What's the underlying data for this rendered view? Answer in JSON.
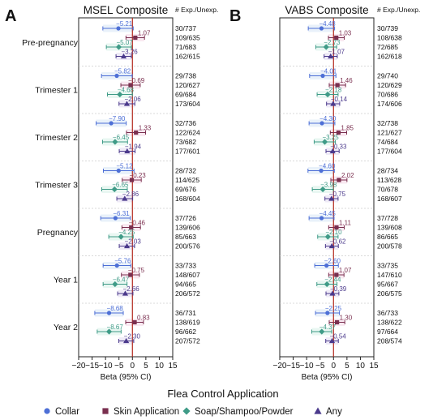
{
  "legend": {
    "title": "Flea Control Application",
    "position": "bottom",
    "items": [
      {
        "label": "Collar",
        "color": "#4d6fd6",
        "marker": "circle"
      },
      {
        "label": "Skin Application",
        "color": "#7a2f4f",
        "marker": "square"
      },
      {
        "label": "Soap/Shampoo/Powder",
        "color": "#3f9b87",
        "marker": "diamond"
      },
      {
        "label": "Any",
        "color": "#4b3a8c",
        "marker": "triangle"
      }
    ]
  },
  "chart_data": [
    {
      "type": "forest",
      "panel_letter": "A",
      "title": "MSEL Composite",
      "xlabel": "Beta (95% CI)",
      "right_header": "# Exp./Unexp.",
      "xlim": [
        -20,
        15
      ],
      "xticks": [
        -20,
        -15,
        -10,
        -5,
        0,
        5,
        10,
        15
      ],
      "reference_line": 0,
      "groups": [
        {
          "label": "Pre-pregnancy",
          "rows": [
            {
              "series": "Collar",
              "beta": -5.21,
              "ci": [
                -11.0,
                0.3
              ],
              "n": "30/737"
            },
            {
              "series": "Skin Application",
              "beta": 1.07,
              "ci": [
                -2.4,
                4.5
              ],
              "n": "109/635"
            },
            {
              "series": "Soap/Shampoo/Powder",
              "beta": -5.07,
              "ci": [
                -9.7,
                -0.4
              ],
              "n": "71/683"
            },
            {
              "series": "Any",
              "beta": -3.26,
              "ci": [
                -6.1,
                -0.4
              ],
              "n": "162/615"
            }
          ]
        },
        {
          "label": "Trimester 1",
          "rows": [
            {
              "series": "Collar",
              "beta": -5.82,
              "ci": [
                -11.5,
                -0.1
              ],
              "n": "29/738"
            },
            {
              "series": "Skin Application",
              "beta": -0.69,
              "ci": [
                -4.3,
                2.9
              ],
              "n": "120/627"
            },
            {
              "series": "Soap/Shampoo/Powder",
              "beta": -4.68,
              "ci": [
                -9.3,
                0.0
              ],
              "n": "69/684"
            },
            {
              "series": "Any",
              "beta": -2.06,
              "ci": [
                -5.0,
                0.9
              ],
              "n": "173/604"
            }
          ]
        },
        {
          "label": "Trimester 2",
          "rows": [
            {
              "series": "Collar",
              "beta": -7.9,
              "ci": [
                -13.5,
                -2.3
              ],
              "n": "32/736"
            },
            {
              "series": "Skin Application",
              "beta": 1.33,
              "ci": [
                -2.2,
                4.9
              ],
              "n": "122/624"
            },
            {
              "series": "Soap/Shampoo/Powder",
              "beta": -6.45,
              "ci": [
                -11.1,
                -1.8
              ],
              "n": "73/682"
            },
            {
              "series": "Any",
              "beta": -1.94,
              "ci": [
                -4.9,
                1.0
              ],
              "n": "177/601"
            }
          ]
        },
        {
          "label": "Trimester 3",
          "rows": [
            {
              "series": "Collar",
              "beta": -5.12,
              "ci": [
                -10.8,
                0.6
              ],
              "n": "28/732"
            },
            {
              "series": "Skin Application",
              "beta": -0.23,
              "ci": [
                -3.8,
                3.3
              ],
              "n": "114/625"
            },
            {
              "series": "Soap/Shampoo/Powder",
              "beta": -6.65,
              "ci": [
                -11.4,
                -1.9
              ],
              "n": "69/676"
            },
            {
              "series": "Any",
              "beta": -2.86,
              "ci": [
                -5.8,
                0.1
              ],
              "n": "168/604"
            }
          ]
        },
        {
          "label": "Pregnancy",
          "rows": [
            {
              "series": "Collar",
              "beta": -6.31,
              "ci": [
                -11.8,
                -0.8
              ],
              "n": "37/726"
            },
            {
              "series": "Skin Application",
              "beta": -0.46,
              "ci": [
                -3.9,
                3.0
              ],
              "n": "139/606"
            },
            {
              "series": "Soap/Shampoo/Powder",
              "beta": -4.25,
              "ci": [
                -8.8,
                0.3
              ],
              "n": "85/663"
            },
            {
              "series": "Any",
              "beta": -2.03,
              "ci": [
                -4.9,
                0.8
              ],
              "n": "200/576"
            }
          ]
        },
        {
          "label": "Year 1",
          "rows": [
            {
              "series": "Collar",
              "beta": -5.76,
              "ci": [
                -10.9,
                -0.6
              ],
              "n": "33/733"
            },
            {
              "series": "Skin Application",
              "beta": -0.75,
              "ci": [
                -4.1,
                2.6
              ],
              "n": "148/607"
            },
            {
              "series": "Soap/Shampoo/Powder",
              "beta": -6.47,
              "ci": [
                -10.9,
                -2.0
              ],
              "n": "94/665"
            },
            {
              "series": "Any",
              "beta": -2.66,
              "ci": [
                -5.5,
                0.2
              ],
              "n": "206/572"
            }
          ]
        },
        {
          "label": "Year 2",
          "rows": [
            {
              "series": "Collar",
              "beta": -8.68,
              "ci": [
                -14.0,
                -3.4
              ],
              "n": "36/731"
            },
            {
              "series": "Skin Application",
              "beta": 0.83,
              "ci": [
                -2.5,
                4.1
              ],
              "n": "138/619"
            },
            {
              "series": "Soap/Shampoo/Powder",
              "beta": -8.67,
              "ci": [
                -13.1,
                -4.2
              ],
              "n": "96/662"
            },
            {
              "series": "Any",
              "beta": -2.3,
              "ci": [
                -5.1,
                0.5
              ],
              "n": "207/572"
            }
          ]
        }
      ]
    },
    {
      "type": "forest",
      "panel_letter": "B",
      "title": "VABS Composite",
      "xlabel": "Beta (95% CI)",
      "right_header": "# Exp./Unexp.",
      "xlim": [
        -20,
        15
      ],
      "xticks": [
        -20,
        -15,
        -10,
        -5,
        0,
        5,
        10,
        15
      ],
      "reference_line": 0,
      "groups": [
        {
          "label": "Pre-pregnancy",
          "rows": [
            {
              "series": "Collar",
              "beta": -4.48,
              "ci": [
                -9.4,
                0.4
              ],
              "n": "30/739"
            },
            {
              "series": "Skin Application",
              "beta": 1.03,
              "ci": [
                -1.9,
                4.0
              ],
              "n": "108/638"
            },
            {
              "series": "Soap/Shampoo/Powder",
              "beta": -2.73,
              "ci": [
                -6.6,
                1.2
              ],
              "n": "72/685"
            },
            {
              "series": "Any",
              "beta": -1.07,
              "ci": [
                -3.5,
                1.4
              ],
              "n": "162/618"
            }
          ]
        },
        {
          "label": "Trimester 1",
          "rows": [
            {
              "series": "Collar",
              "beta": -4.01,
              "ci": [
                -8.9,
                0.9
              ],
              "n": "29/740"
            },
            {
              "series": "Skin Application",
              "beta": 1.46,
              "ci": [
                -1.6,
                4.5
              ],
              "n": "120/629"
            },
            {
              "series": "Soap/Shampoo/Powder",
              "beta": -2.18,
              "ci": [
                -6.1,
                1.7
              ],
              "n": "70/686"
            },
            {
              "series": "Any",
              "beta": -0.14,
              "ci": [
                -2.6,
                2.3
              ],
              "n": "174/606"
            }
          ]
        },
        {
          "label": "Trimester 2",
          "rows": [
            {
              "series": "Collar",
              "beta": -4.3,
              "ci": [
                -9.1,
                0.5
              ],
              "n": "32/738"
            },
            {
              "series": "Skin Application",
              "beta": 1.85,
              "ci": [
                -1.2,
                4.9
              ],
              "n": "121/627"
            },
            {
              "series": "Soap/Shampoo/Powder",
              "beta": -3.25,
              "ci": [
                -7.2,
                0.7
              ],
              "n": "74/684"
            },
            {
              "series": "Any",
              "beta": -0.33,
              "ci": [
                -2.8,
                2.1
              ],
              "n": "177/604"
            }
          ]
        },
        {
          "label": "Trimester 3",
          "rows": [
            {
              "series": "Collar",
              "beta": -4.6,
              "ci": [
                -9.5,
                0.3
              ],
              "n": "28/734"
            },
            {
              "series": "Skin Application",
              "beta": 2.02,
              "ci": [
                -1.0,
                5.0
              ],
              "n": "113/628"
            },
            {
              "series": "Soap/Shampoo/Powder",
              "beta": -3.98,
              "ci": [
                -7.9,
                -0.1
              ],
              "n": "70/678"
            },
            {
              "series": "Any",
              "beta": -0.75,
              "ci": [
                -3.2,
                1.7
              ],
              "n": "168/607"
            }
          ]
        },
        {
          "label": "Pregnancy",
          "rows": [
            {
              "series": "Collar",
              "beta": -4.45,
              "ci": [
                -9.1,
                0.2
              ],
              "n": "37/728"
            },
            {
              "series": "Skin Application",
              "beta": 1.11,
              "ci": [
                -1.8,
                4.0
              ],
              "n": "139/608"
            },
            {
              "series": "Soap/Shampoo/Powder",
              "beta": -2.1,
              "ci": [
                -5.9,
                1.7
              ],
              "n": "86/665"
            },
            {
              "series": "Any",
              "beta": -0.62,
              "ci": [
                -3.0,
                1.8
              ],
              "n": "200/578"
            }
          ]
        },
        {
          "label": "Year 1",
          "rows": [
            {
              "series": "Collar",
              "beta": -2.6,
              "ci": [
                -7.0,
                1.8
              ],
              "n": "33/735"
            },
            {
              "series": "Skin Application",
              "beta": 1.07,
              "ci": [
                -1.8,
                3.9
              ],
              "n": "147/610"
            },
            {
              "series": "Soap/Shampoo/Powder",
              "beta": -2.44,
              "ci": [
                -6.2,
                1.3
              ],
              "n": "95/667"
            },
            {
              "series": "Any",
              "beta": -0.39,
              "ci": [
                -2.8,
                2.0
              ],
              "n": "206/575"
            }
          ]
        },
        {
          "label": "Year 2",
          "rows": [
            {
              "series": "Collar",
              "beta": -2.25,
              "ci": [
                -6.7,
                2.2
              ],
              "n": "36/733"
            },
            {
              "series": "Skin Application",
              "beta": 1.3,
              "ci": [
                -1.6,
                4.2
              ],
              "n": "138/622"
            },
            {
              "series": "Soap/Shampoo/Powder",
              "beta": -4.37,
              "ci": [
                -8.1,
                -0.7
              ],
              "n": "97/664"
            },
            {
              "series": "Any",
              "beta": -0.54,
              "ci": [
                -2.9,
                1.8
              ],
              "n": "208/574"
            }
          ]
        }
      ]
    }
  ]
}
